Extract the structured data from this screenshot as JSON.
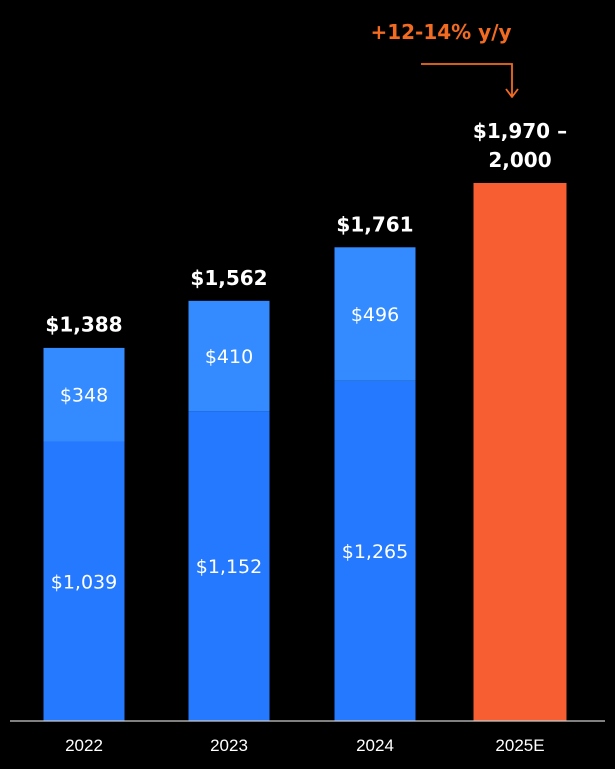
{
  "chart_data": {
    "type": "bar",
    "stacked": true,
    "categories": [
      "2022",
      "2023",
      "2024",
      "2025E"
    ],
    "series": [
      {
        "values": [
          1039,
          1152,
          1265,
          null
        ],
        "labels": [
          "$1,039",
          "$1,152",
          "$1,265",
          ""
        ],
        "color": "#2479ff"
      },
      {
        "values": [
          348,
          410,
          496,
          null
        ],
        "labels": [
          "$348",
          "$410",
          "$496",
          ""
        ],
        "color": "#338bff"
      },
      {
        "values": [
          null,
          null,
          null,
          2000
        ],
        "labels": [
          "",
          "",
          "",
          ""
        ],
        "color": "#f75e31"
      }
    ],
    "totals": [
      1388,
      1562,
      1761,
      2000
    ],
    "total_labels": [
      "$1,388",
      "$1,562",
      "$1,761",
      "$1,970 –|2,000"
    ],
    "annotation": {
      "text": "+12-14% y/y",
      "color": "#f26b21",
      "from": "2024",
      "to": "2025E"
    },
    "ylim": [
      0,
      2000
    ],
    "grid": false,
    "axis_color": "#cccccc",
    "background": "#000000"
  }
}
